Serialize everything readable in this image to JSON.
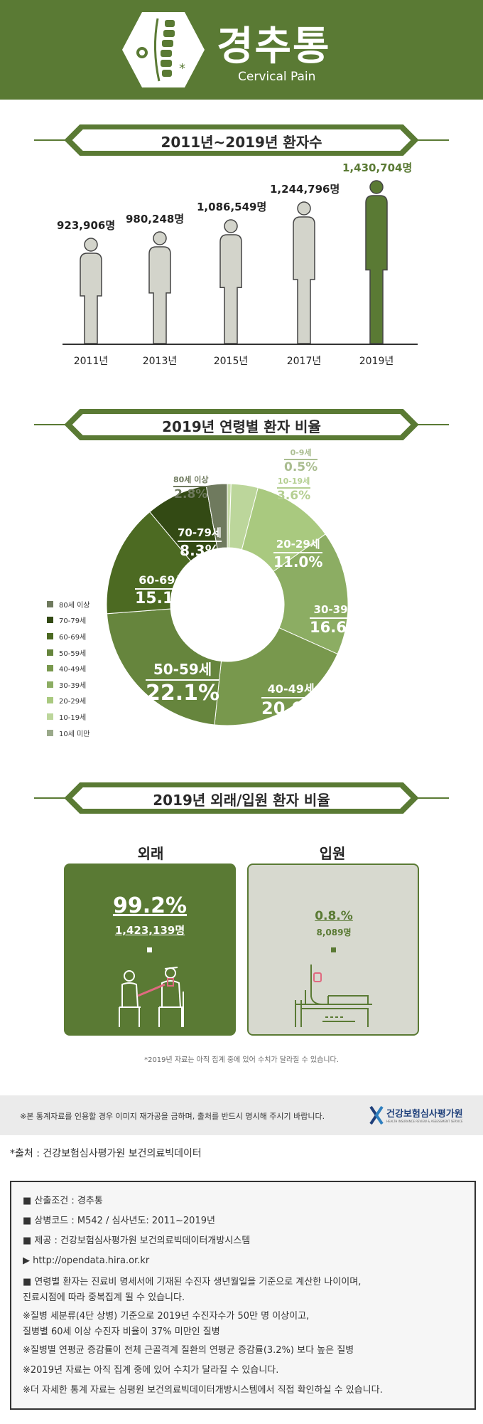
{
  "header": {
    "title_ko": "경추통",
    "title_en": "Cervical Pain"
  },
  "sections": {
    "patients_title": "2011년~2019년 환자수",
    "age_title": "2019년 연령별 환자 비율",
    "visit_title": "2019년 외래/입원 환자 비율"
  },
  "patients": [
    {
      "year": "2011년",
      "value": "923,906명",
      "count": 923906,
      "highlight": false
    },
    {
      "year": "2013년",
      "value": "980,248명",
      "count": 980248,
      "highlight": false
    },
    {
      "year": "2015년",
      "value": "1,086,549명",
      "count": 1086549,
      "highlight": false
    },
    {
      "year": "2017년",
      "value": "1,244,796명",
      "count": 1244796,
      "highlight": false
    },
    {
      "year": "2019년",
      "value": "1,430,704명",
      "count": 1430704,
      "highlight": true
    }
  ],
  "age_distribution": [
    {
      "age": "0-9세",
      "pct": "0.5%",
      "value": 0.5,
      "color": "#c6dba6",
      "label_color": "#aabd90"
    },
    {
      "age": "10-19세",
      "pct": "3.6%",
      "value": 3.6,
      "color": "#bcd69b",
      "label_color": "#b5cf92"
    },
    {
      "age": "20-29세",
      "pct": "11.0%",
      "value": 11.0,
      "color": "#a9c97f",
      "label_color": "#ffffff"
    },
    {
      "age": "30-39세",
      "pct": "16.6%",
      "value": 16.6,
      "color": "#8cad63",
      "label_color": "#ffffff"
    },
    {
      "age": "40-49세",
      "pct": "20.0%",
      "value": 20.0,
      "color": "#78984d",
      "label_color": "#ffffff"
    },
    {
      "age": "50-59세",
      "pct": "22.1%",
      "value": 22.1,
      "color": "#66853d",
      "label_color": "#ffffff"
    },
    {
      "age": "60-69세",
      "pct": "15.1%",
      "value": 15.1,
      "color": "#4c6a22",
      "label_color": "#ffffff"
    },
    {
      "age": "70-79세",
      "pct": "8.3%",
      "value": 8.3,
      "color": "#334a14",
      "label_color": "#ffffff"
    },
    {
      "age": "80세 이상",
      "pct": "2.8%",
      "value": 2.8,
      "color": "#6f7a5e",
      "label_color": "#6f7a5e"
    }
  ],
  "legend": [
    {
      "label": "80세 이상",
      "color": "#6f7a5e"
    },
    {
      "label": "70-79세",
      "color": "#334a14"
    },
    {
      "label": "60-69세",
      "color": "#4c6a22"
    },
    {
      "label": "50-59세",
      "color": "#66853d"
    },
    {
      "label": "40-49세",
      "color": "#78984d"
    },
    {
      "label": "30-39세",
      "color": "#8cad63"
    },
    {
      "label": "20-29세",
      "color": "#a9c97f"
    },
    {
      "label": "10-19세",
      "color": "#bcd69b"
    },
    {
      "label": "10세 미만",
      "color": "#9aa98a"
    }
  ],
  "visits": {
    "outpatient": {
      "title": "외래",
      "pct": "99.2%",
      "count": "1,423,139명"
    },
    "inpatient": {
      "title": "입원",
      "pct": "0.8.%",
      "count": "8,089명"
    },
    "note": "*2019년 자료는 아직 집계 중에 있어 수치가 달라질 수 있습니다."
  },
  "notice": "※본 통계자료를 인용할 경우 이미지 재가공을 금하며, 출처를 반드시 명시해 주시기 바랍니다.",
  "org": {
    "name": "건강보험심사평가원",
    "name_en": "HEALTH INSURANCE REVIEW & ASSESSMENT SERVICE"
  },
  "source": "*출처 : 건강보험심사평가원 보건의료빅데이터",
  "info": [
    "■ 산출조건 : 경추통",
    "■ 상병코드 : M542 / 심사년도: 2011~2019년",
    "■ 제공 : 건강보험심사평가원 보건의료빅데이터개방시스템",
    "▶ http://opendata.hira.or.kr",
    "■ 연령별 환자는 진료비 명세서에 기재된 수진자 생년월일을 기준으로 계산한 나이이며,",
    "    진료시점에 따라 중복집계 될 수 있습니다.",
    "※질병 세분류(4단 상병) 기준으로 2019년 수진자수가 50만 명 이상이고,",
    "    질병별 60세 이상 수진자 비율이 37% 미만인 질병",
    "※질병별 연평균 증감률이 전체 근골격계 질환의 연평균 증감률(3.2%) 보다 높은 질병",
    "※2019년 자료는 아직 집계 중에 있어 수치가 달라질 수 있습니다.",
    "※더 자세한 통계 자료는 심평원 보건의료빅데이터개방시스템에서 직접 확인하실 수 있습니다."
  ]
}
